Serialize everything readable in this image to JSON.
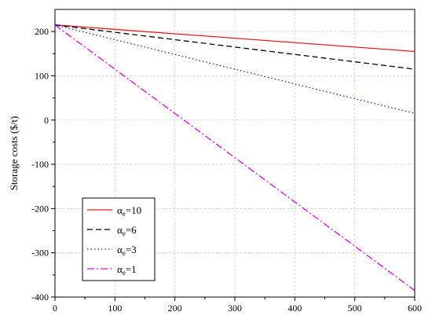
{
  "chart_data": {
    "type": "line",
    "title": "",
    "xlabel": "",
    "ylabel": "Storage costs ($/t)",
    "xlim": [
      0,
      600
    ],
    "ylim": [
      -400,
      250
    ],
    "xticks": [
      0,
      100,
      200,
      300,
      400,
      500,
      600
    ],
    "yticks": [
      -400,
      -300,
      -200,
      -100,
      0,
      100,
      200
    ],
    "grid": true,
    "legend_position": "bottom-left",
    "series": [
      {
        "name": "αe=10",
        "legend_base": "α",
        "legend_sub": "e",
        "legend_suffix": "=10",
        "color": "#e0201c",
        "dash": "solid",
        "x": [
          0,
          600
        ],
        "y": [
          215,
          155
        ]
      },
      {
        "name": "αe=6",
        "legend_base": "α",
        "legend_sub": "e",
        "legend_suffix": "=6",
        "color": "#000000",
        "dash": "dashed",
        "x": [
          0,
          600
        ],
        "y": [
          215,
          115
        ]
      },
      {
        "name": "αe=3",
        "legend_base": "α",
        "legend_sub": "e",
        "legend_suffix": "=3",
        "color": "#1e1ee0",
        "dash": "dotted",
        "x": [
          0,
          600
        ],
        "y": [
          215,
          15
        ]
      },
      {
        "name": "αe=1",
        "legend_base": "α",
        "legend_sub": "e",
        "legend_suffix": "=1",
        "color": "#ee00ee",
        "dash": "dashdot",
        "x": [
          0,
          600
        ],
        "y": [
          215,
          -385
        ]
      }
    ]
  }
}
